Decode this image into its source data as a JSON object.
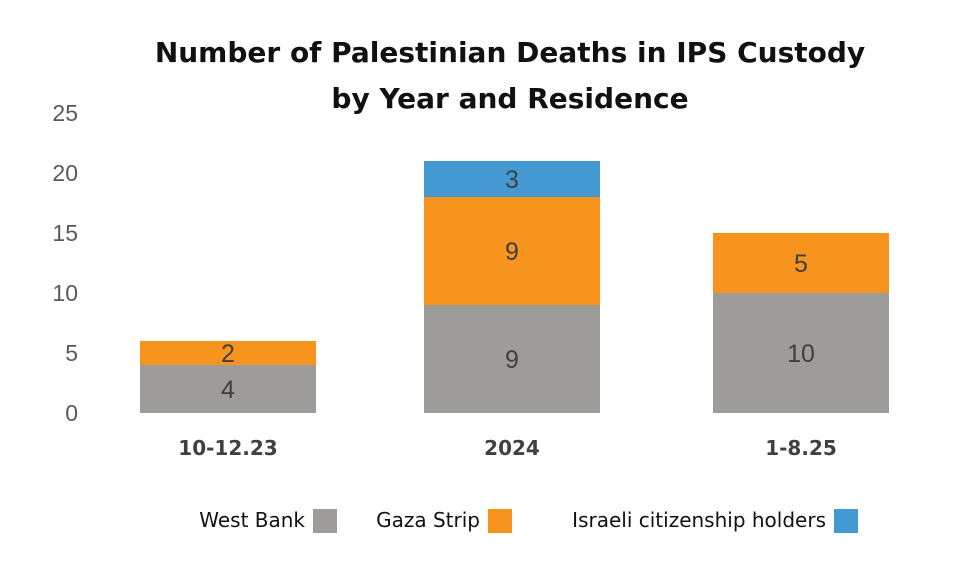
{
  "chart_data": {
    "type": "bar",
    "stacked": true,
    "title": [
      "Number of Palestinian Deaths in IPS Custody",
      "by Year and Residence"
    ],
    "categories": [
      "10-12.23",
      "2024",
      "1-8.25"
    ],
    "series": [
      {
        "name": "West Bank",
        "values": [
          4,
          9,
          10
        ],
        "color": "#9e9b9b"
      },
      {
        "name": "Gaza Strip",
        "values": [
          2,
          9,
          5
        ],
        "color": "#f7941d"
      },
      {
        "name": "Israeli citizenship holders",
        "values": [
          null,
          3,
          null
        ],
        "color": "#4499d3"
      }
    ],
    "yticks": [
      0,
      5,
      10,
      15,
      20,
      25
    ],
    "ylim": [
      0,
      25
    ],
    "xlabel": "",
    "ylabel": "",
    "grid": false,
    "legend_position": "bottom"
  }
}
